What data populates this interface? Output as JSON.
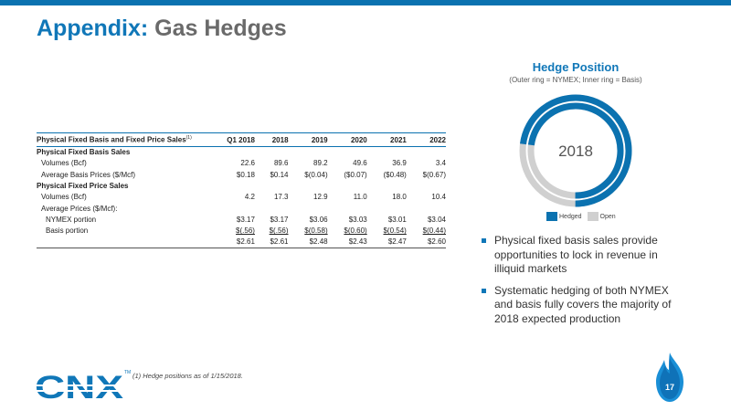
{
  "title": {
    "part1": "Appendix:",
    "part2": "Gas Hedges"
  },
  "table": {
    "header": {
      "label": "Physical Fixed Basis and Fixed Price Sales",
      "sup": "(1)"
    },
    "columns": [
      "Q1 2018",
      "2018",
      "2019",
      "2020",
      "2021",
      "2022"
    ],
    "rows": [
      {
        "label": "Physical Fixed Basis Sales",
        "type": "section",
        "values": []
      },
      {
        "label": "Volumes (Bcf)",
        "type": "indent1",
        "values": [
          "22.6",
          "89.6",
          "89.2",
          "49.6",
          "36.9",
          "3.4"
        ]
      },
      {
        "label": "Average Basis Prices ($/Mcf)",
        "type": "indent1",
        "values": [
          "$0.18",
          "$0.14",
          "$(0.04)",
          "($0.07)",
          "($0.48)",
          "$(0.67)"
        ]
      },
      {
        "label": "Physical Fixed Price Sales",
        "type": "section",
        "values": []
      },
      {
        "label": "Volumes (Bcf)",
        "type": "indent1",
        "values": [
          "4.2",
          "17.3",
          "12.9",
          "11.0",
          "18.0",
          "10.4"
        ]
      },
      {
        "label": "Average Prices ($/Mcf):",
        "type": "indent1",
        "values": []
      },
      {
        "label": "NYMEX portion",
        "type": "indent2",
        "values": [
          "$3.17",
          "$3.17",
          "$3.06",
          "$3.03",
          "$3.01",
          "$3.04"
        ]
      },
      {
        "label": "Basis portion",
        "type": "indent2-ul",
        "values": [
          "$(.56)",
          "$(.56)",
          "$(0.58)",
          "$(0.60)",
          "$(0.54)",
          "$(0.44)"
        ]
      },
      {
        "label": "",
        "type": "total",
        "values": [
          "$2.61",
          "$2.61",
          "$2.48",
          "$2.43",
          "$2.47",
          "$2.60"
        ]
      }
    ]
  },
  "hedge": {
    "title": "Hedge Position",
    "subtitle": "(Outer ring = NYMEX; Inner ring = Basis)",
    "center_label": "2018",
    "outer_hedged_fraction": 0.73,
    "inner_hedged_fraction": 0.73,
    "legend": [
      {
        "label": "Hedged",
        "color": "#0b72b0"
      },
      {
        "label": "Open",
        "color": "#d0d0d0"
      }
    ]
  },
  "bullets": [
    "Physical fixed basis sales provide opportunities to lock in revenue in illiquid markets",
    "Systematic hedging of both NYMEX and basis fully covers the majority of 2018 expected production"
  ],
  "footer": {
    "logo_text": "CNX",
    "tm": "TM",
    "footnote": "(1)   Hedge positions as of 1/15/2018.",
    "page_number": "17"
  },
  "colors": {
    "brand_blue": "#0b72b0",
    "open_gray": "#d0d0d0"
  }
}
